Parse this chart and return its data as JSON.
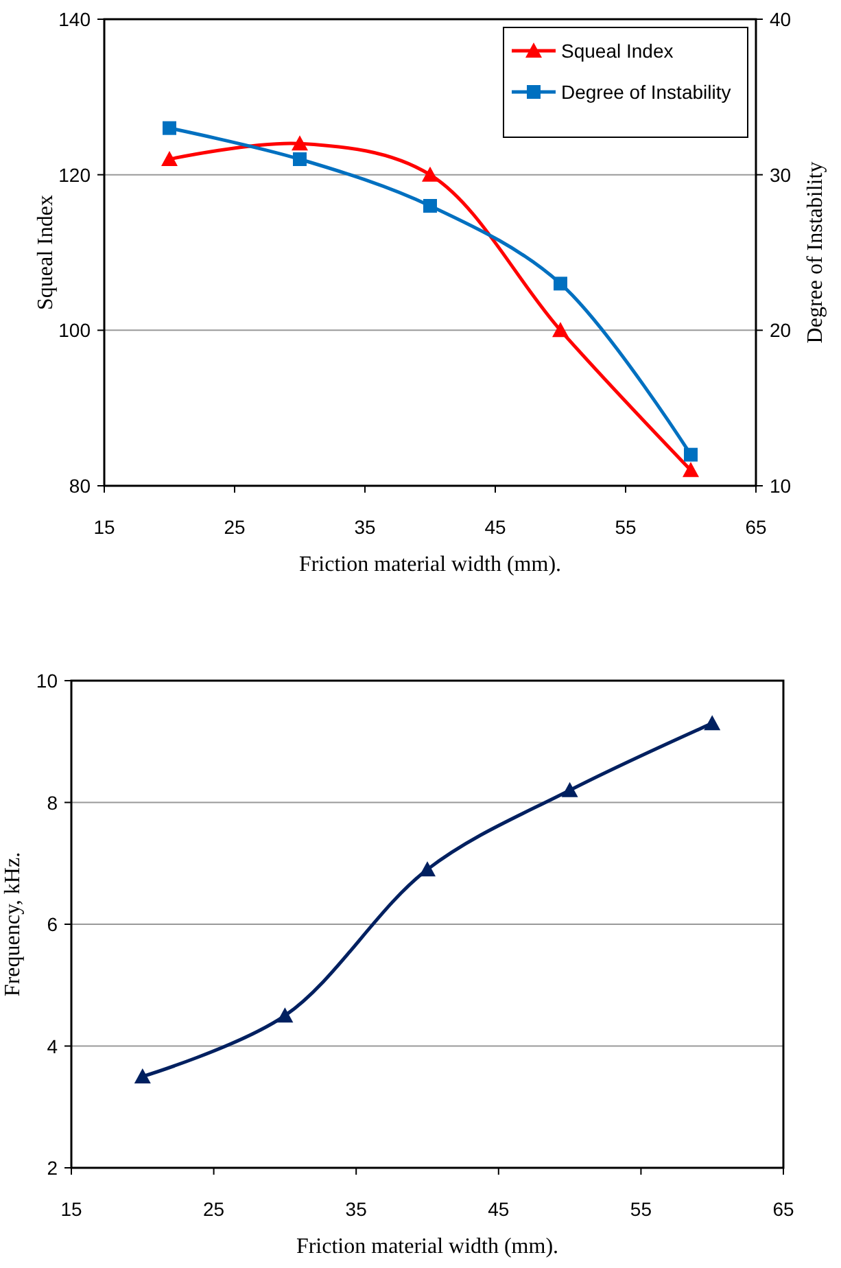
{
  "chart_data": [
    {
      "type": "line",
      "xlabel": "Friction material width (mm).",
      "ylabel": "Squeal Index",
      "y2label": "Degree of Instability",
      "x": [
        20,
        30,
        40,
        50,
        60
      ],
      "series": [
        {
          "name": "Squeal Index",
          "color": "#ff0000",
          "values": [
            122,
            124,
            120,
            100,
            82
          ],
          "marker": "triangle"
        },
        {
          "name": "Degree of Instability",
          "color": "#0070c0",
          "values": [
            33,
            31,
            28,
            23,
            12
          ],
          "axis": "y2",
          "marker": "square"
        }
      ],
      "xlim": [
        15,
        65
      ],
      "xticks": [
        15,
        25,
        35,
        45,
        55,
        65
      ],
      "ylim": [
        80,
        140
      ],
      "yticks": [
        80,
        100,
        120,
        140
      ],
      "y2lim": [
        10,
        40
      ],
      "y2ticks": [
        10,
        20,
        30,
        40
      ],
      "grid": "y",
      "legend": "top right",
      "line_style": "solid"
    },
    {
      "type": "line",
      "xlabel": "Friction material width (mm).",
      "ylabel": "Frequency, kHz.",
      "x": [
        20,
        30,
        40,
        50,
        60
      ],
      "series": [
        {
          "color": "#002060",
          "values": [
            3.5,
            4.5,
            6.9,
            8.2,
            9.3
          ],
          "marker": "triangle"
        }
      ],
      "xlim": [
        15,
        65
      ],
      "xticks": [
        15,
        25,
        35,
        45,
        55,
        65
      ],
      "ylim": [
        2,
        10
      ],
      "yticks": [
        2,
        4,
        6,
        8,
        10
      ],
      "grid": "y",
      "legend": false,
      "line_style": "solid"
    }
  ]
}
